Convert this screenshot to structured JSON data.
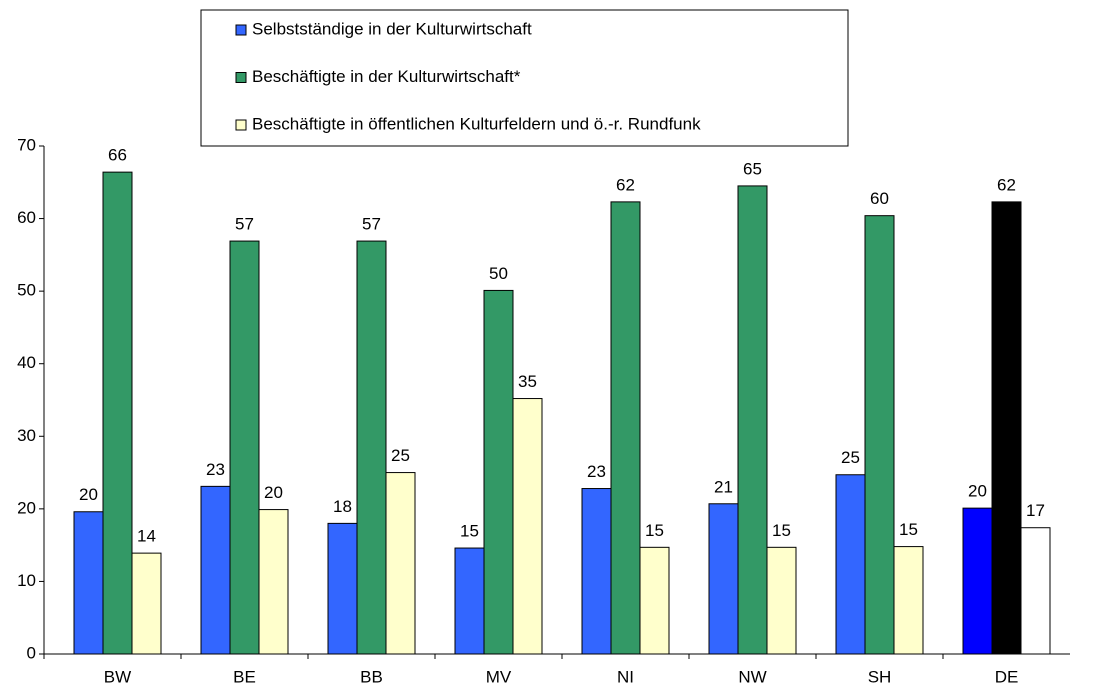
{
  "chart_data": {
    "type": "bar",
    "categories": [
      "BW",
      "BE",
      "BB",
      "MV",
      "NI",
      "NW",
      "SH",
      "DE"
    ],
    "series": [
      {
        "name": "Selbstständige in der Kulturwirtschaft",
        "color": "#3366ff",
        "colors": [
          "#3366ff",
          "#3366ff",
          "#3366ff",
          "#3366ff",
          "#3366ff",
          "#3366ff",
          "#3366ff",
          "#0000ff"
        ],
        "values": [
          19.6,
          23.1,
          18.0,
          14.6,
          22.8,
          20.7,
          24.7,
          20.1
        ],
        "value_labels": [
          "20",
          "23",
          "18",
          "15",
          "23",
          "21",
          "25",
          "20"
        ]
      },
      {
        "name": "Beschäftigte in der Kulturwirtschaft*",
        "color": "#339966",
        "colors": [
          "#339966",
          "#339966",
          "#339966",
          "#339966",
          "#339966",
          "#339966",
          "#339966",
          "#000000"
        ],
        "values": [
          66.4,
          56.9,
          56.9,
          50.1,
          62.3,
          64.5,
          60.4,
          62.3
        ],
        "value_labels": [
          "66",
          "57",
          "57",
          "50",
          "62",
          "65",
          "60",
          "62"
        ]
      },
      {
        "name": "Beschäftigte in öffentlichen Kulturfeldern und ö.-r. Rundfunk",
        "color": "#ffffcc",
        "colors": [
          "#ffffcc",
          "#ffffcc",
          "#ffffcc",
          "#ffffcc",
          "#ffffcc",
          "#ffffcc",
          "#ffffcc",
          "#ffffff"
        ],
        "values": [
          13.9,
          19.9,
          25.0,
          35.2,
          14.7,
          14.7,
          14.8,
          17.4
        ],
        "value_labels": [
          "14",
          "20",
          "25",
          "35",
          "15",
          "15",
          "15",
          "17"
        ]
      }
    ],
    "ylim": [
      0,
      70
    ],
    "yticks": [
      0,
      10,
      20,
      30,
      40,
      50,
      60,
      70
    ],
    "grid": false,
    "legend": "top"
  }
}
